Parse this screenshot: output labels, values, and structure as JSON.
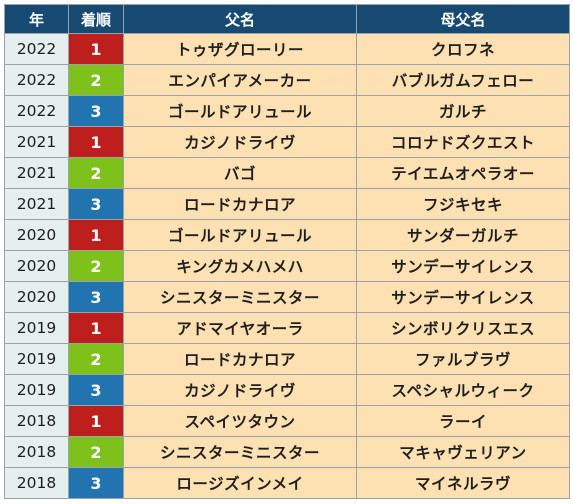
{
  "colors": {
    "header_bg": "#164a72",
    "header_text": "#ffffff",
    "year_bg": "#e4efee",
    "name_bg": "#fde1b3",
    "rank1": "#be1e1c",
    "rank2": "#7ec11b",
    "rank3": "#2274b0"
  },
  "table": {
    "headers": {
      "year": "年",
      "rank": "着順",
      "sire": "父名",
      "dam_sire": "母父名"
    },
    "rows": [
      {
        "year": "2022",
        "rank": "1",
        "sire": "トゥザグローリー",
        "dam_sire": "クロフネ"
      },
      {
        "year": "2022",
        "rank": "2",
        "sire": "エンパイアメーカー",
        "dam_sire": "バブルガムフェロー"
      },
      {
        "year": "2022",
        "rank": "3",
        "sire": "ゴールドアリュール",
        "dam_sire": "ガルチ"
      },
      {
        "year": "2021",
        "rank": "1",
        "sire": "カジノドライヴ",
        "dam_sire": "コロナドズクエスト"
      },
      {
        "year": "2021",
        "rank": "2",
        "sire": "バゴ",
        "dam_sire": "テイエムオペラオー"
      },
      {
        "year": "2021",
        "rank": "3",
        "sire": "ロードカナロア",
        "dam_sire": "フジキセキ"
      },
      {
        "year": "2020",
        "rank": "1",
        "sire": "ゴールドアリュール",
        "dam_sire": "サンダーガルチ"
      },
      {
        "year": "2020",
        "rank": "2",
        "sire": "キングカメハメハ",
        "dam_sire": "サンデーサイレンス"
      },
      {
        "year": "2020",
        "rank": "3",
        "sire": "シニスターミニスター",
        "dam_sire": "サンデーサイレンス"
      },
      {
        "year": "2019",
        "rank": "1",
        "sire": "アドマイヤオーラ",
        "dam_sire": "シンボリクリスエス"
      },
      {
        "year": "2019",
        "rank": "2",
        "sire": "ロードカナロア",
        "dam_sire": "ファルブラヴ"
      },
      {
        "year": "2019",
        "rank": "3",
        "sire": "カジノドライヴ",
        "dam_sire": "スペシャルウィーク"
      },
      {
        "year": "2018",
        "rank": "1",
        "sire": "スペイツタウン",
        "dam_sire": "ラーイ"
      },
      {
        "year": "2018",
        "rank": "2",
        "sire": "シニスターミニスター",
        "dam_sire": "マキャヴェリアン"
      },
      {
        "year": "2018",
        "rank": "3",
        "sire": "ロージズインメイ",
        "dam_sire": "マイネルラヴ"
      }
    ]
  }
}
